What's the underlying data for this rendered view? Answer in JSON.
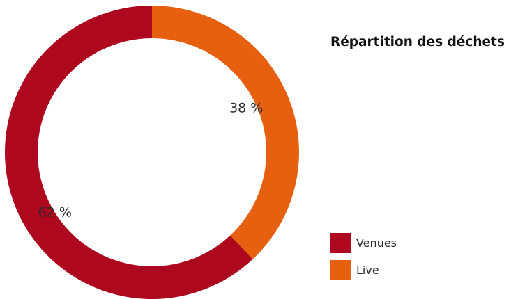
{
  "chart_data": {
    "type": "pie",
    "title": "Répartition des déchets",
    "donut": true,
    "categories": [
      "Venues",
      "Live"
    ],
    "values": [
      62,
      38
    ],
    "labels": [
      "62 %",
      "38 %"
    ],
    "colors": [
      "#ad081e",
      "#e6600f"
    ],
    "legend_position": "bottom-right"
  }
}
